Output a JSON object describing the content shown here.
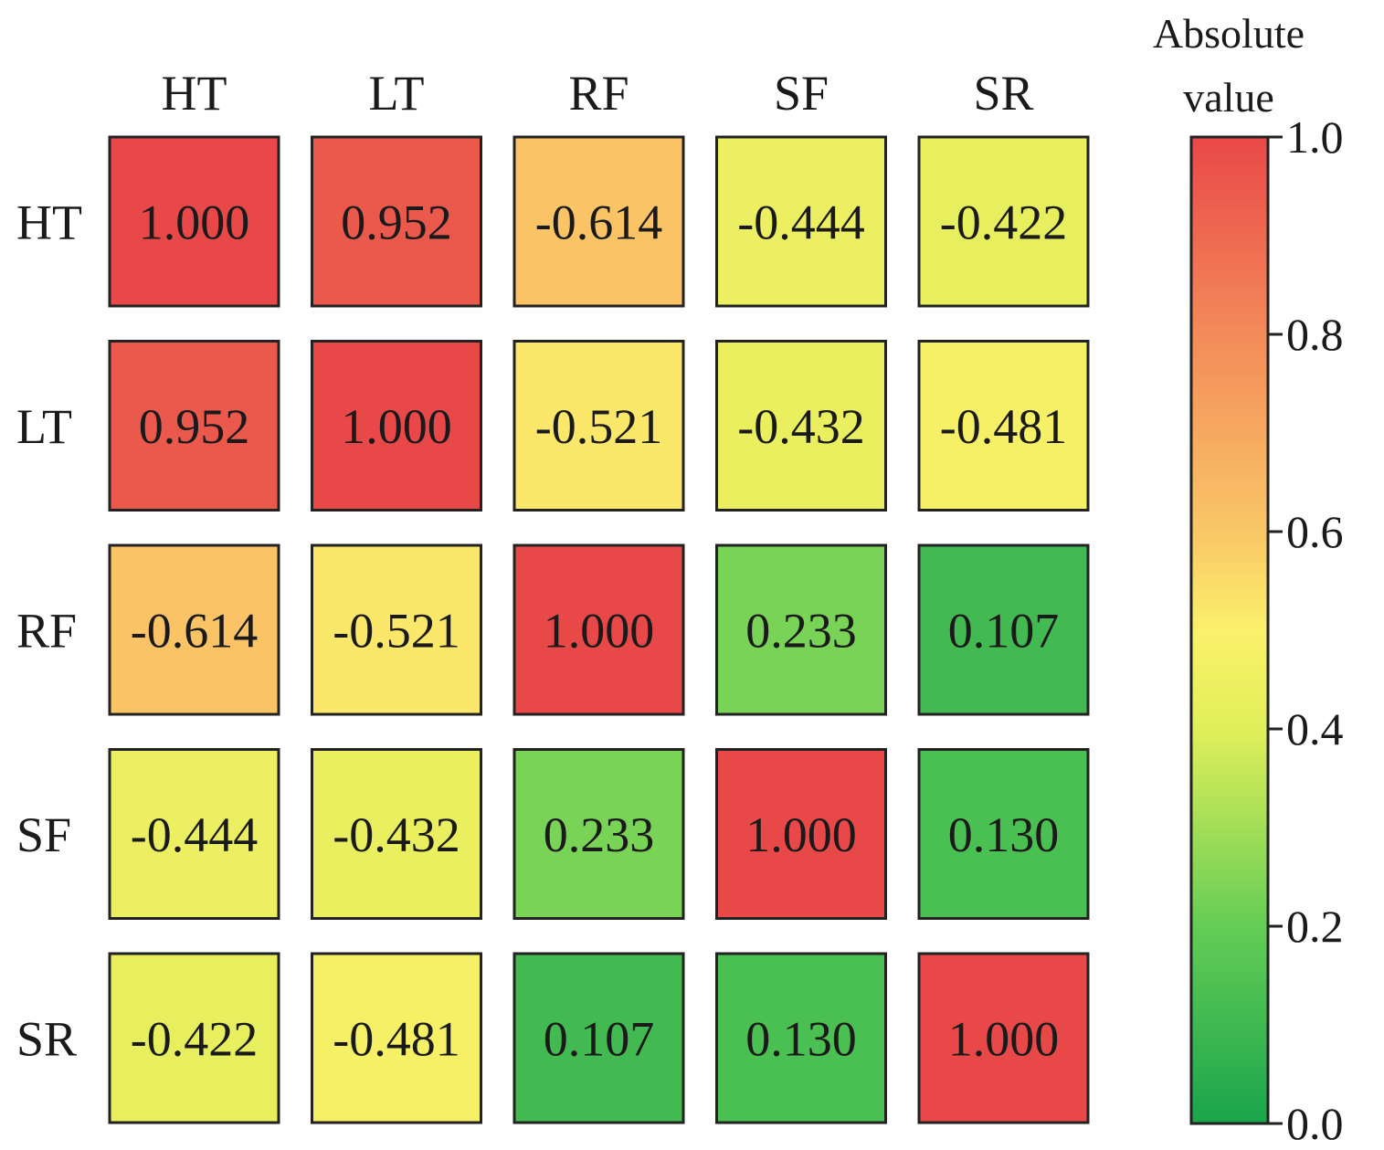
{
  "chart_data": {
    "type": "heatmap",
    "title": "",
    "row_labels": [
      "HT",
      "LT",
      "RF",
      "SF",
      "SR"
    ],
    "col_labels": [
      "HT",
      "LT",
      "RF",
      "SF",
      "SR"
    ],
    "cell_labels": [
      [
        "1.000",
        "0.952",
        "-0.614",
        "-0.444",
        "-0.422"
      ],
      [
        "0.952",
        "1.000",
        "-0.521",
        "-0.432",
        "-0.481"
      ],
      [
        "-0.614",
        "-0.521",
        "1.000",
        "0.233",
        "0.107"
      ],
      [
        "-0.444",
        "-0.432",
        "0.233",
        "1.000",
        "0.130"
      ],
      [
        "-0.422",
        "-0.481",
        "0.107",
        "0.130",
        "1.000"
      ]
    ],
    "values": [
      [
        1.0,
        0.952,
        -0.614,
        -0.444,
        -0.422
      ],
      [
        0.952,
        1.0,
        -0.521,
        -0.432,
        -0.481
      ],
      [
        -0.614,
        -0.521,
        1.0,
        0.233,
        0.107
      ],
      [
        -0.444,
        -0.432,
        0.233,
        1.0,
        0.13
      ],
      [
        -0.422,
        -0.481,
        0.107,
        0.13,
        1.0
      ]
    ],
    "color_by": "absolute value",
    "colorbar": {
      "title_line1": "Absolute",
      "title_line2": "value",
      "range": [
        0.0,
        1.0
      ],
      "ticks": [
        {
          "value": 1.0,
          "label": "1.0"
        },
        {
          "value": 0.8,
          "label": "0.8"
        },
        {
          "value": 0.6,
          "label": "0.6"
        },
        {
          "value": 0.4,
          "label": "0.4"
        },
        {
          "value": 0.2,
          "label": "0.2"
        },
        {
          "value": 0.0,
          "label": "0.0"
        }
      ],
      "stops": [
        {
          "value": 0.0,
          "color": "#1aa44c"
        },
        {
          "value": 0.2,
          "color": "#64cd55"
        },
        {
          "value": 0.4,
          "color": "#e1ef5a"
        },
        {
          "value": 0.5,
          "color": "#fbf06a"
        },
        {
          "value": 0.6,
          "color": "#f9c767"
        },
        {
          "value": 0.8,
          "color": "#f38a59"
        },
        {
          "value": 1.0,
          "color": "#e94848"
        }
      ]
    }
  }
}
